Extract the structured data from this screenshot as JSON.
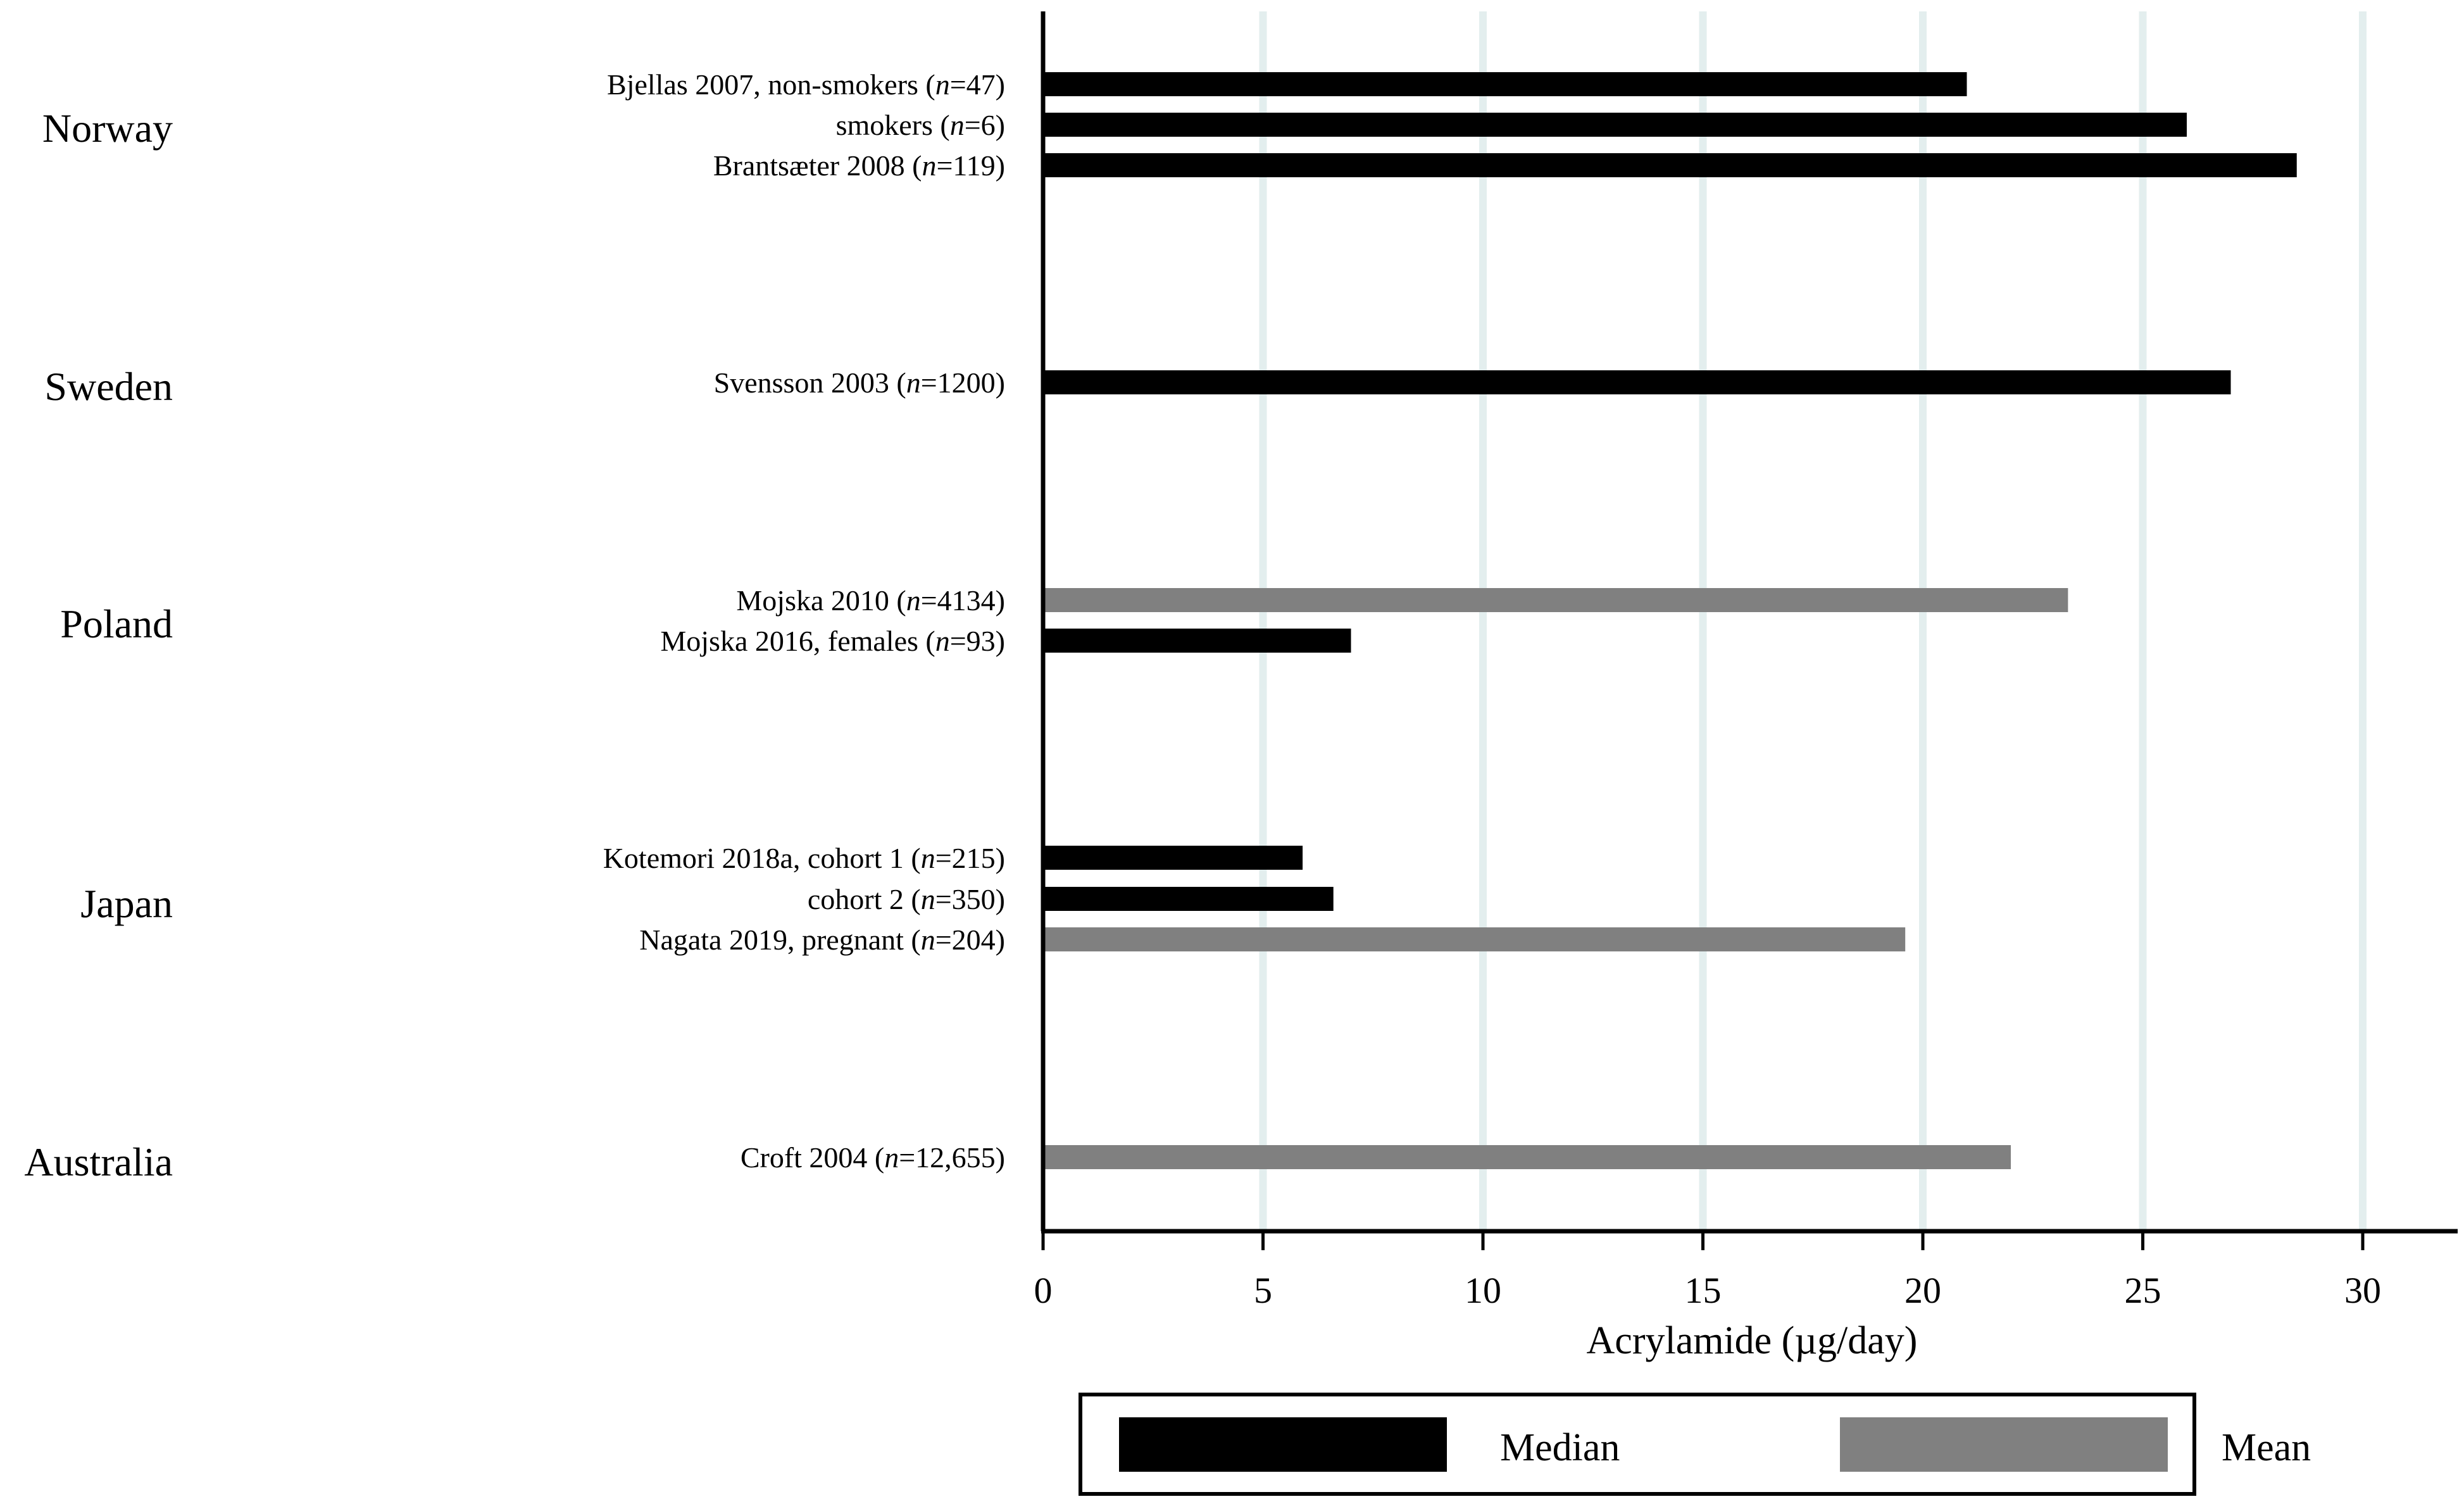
{
  "colors": {
    "Median": "#000000",
    "Mean": "#808080",
    "grid": "#e3eeee",
    "axis": "#000000"
  },
  "chart_data": {
    "type": "bar",
    "orientation": "horizontal",
    "title": "",
    "xlabel": "Acrylamide (µg/day)",
    "ylabel": "",
    "xlim": [
      0,
      32
    ],
    "xticks": [
      0,
      5,
      10,
      15,
      20,
      25,
      30
    ],
    "grid": "vertical",
    "legend": {
      "placement": "bottom",
      "entries": [
        "Median",
        "Mean"
      ]
    },
    "groups": [
      {
        "country": "Norway",
        "studies": [
          {
            "label": "Bjellas 2007, non-smokers (",
            "n": "n",
            "rest": "=47)",
            "value": 21.0,
            "stat": "Median"
          },
          {
            "label": "smokers (",
            "n": "n",
            "rest": "=6)",
            "value": 26.0,
            "stat": "Median"
          },
          {
            "label": "Brantsæter 2008 (",
            "n": "n",
            "rest": "=119)",
            "value": 28.5,
            "stat": "Median"
          }
        ]
      },
      {
        "country": "Sweden",
        "studies": [
          {
            "label": "Svensson 2003 (",
            "n": "n",
            "rest": "=1200)",
            "value": 27.0,
            "stat": "Median"
          }
        ]
      },
      {
        "country": "Poland",
        "studies": [
          {
            "label": "Mojska 2010 (",
            "n": "n",
            "rest": "=4134)",
            "value": 23.3,
            "stat": "Mean"
          },
          {
            "label": "Mojska 2016, females (",
            "n": "n",
            "rest": "=93)",
            "value": 7.0,
            "stat": "Median"
          }
        ]
      },
      {
        "country": "Japan",
        "studies": [
          {
            "label": "Kotemori 2018a, cohort 1 (",
            "n": "n",
            "rest": "=215)",
            "value": 5.9,
            "stat": "Median"
          },
          {
            "label": "cohort 2 (",
            "n": "n",
            "rest": "=350)",
            "value": 6.6,
            "stat": "Median"
          },
          {
            "label": "Nagata 2019, pregnant (",
            "n": "n",
            "rest": "=204)",
            "value": 19.6,
            "stat": "Mean"
          }
        ]
      },
      {
        "country": "Australia",
        "studies": [
          {
            "label": "Croft 2004 (",
            "n": "n",
            "rest": "=12,655)",
            "value": 22.0,
            "stat": "Mean"
          }
        ]
      }
    ]
  }
}
